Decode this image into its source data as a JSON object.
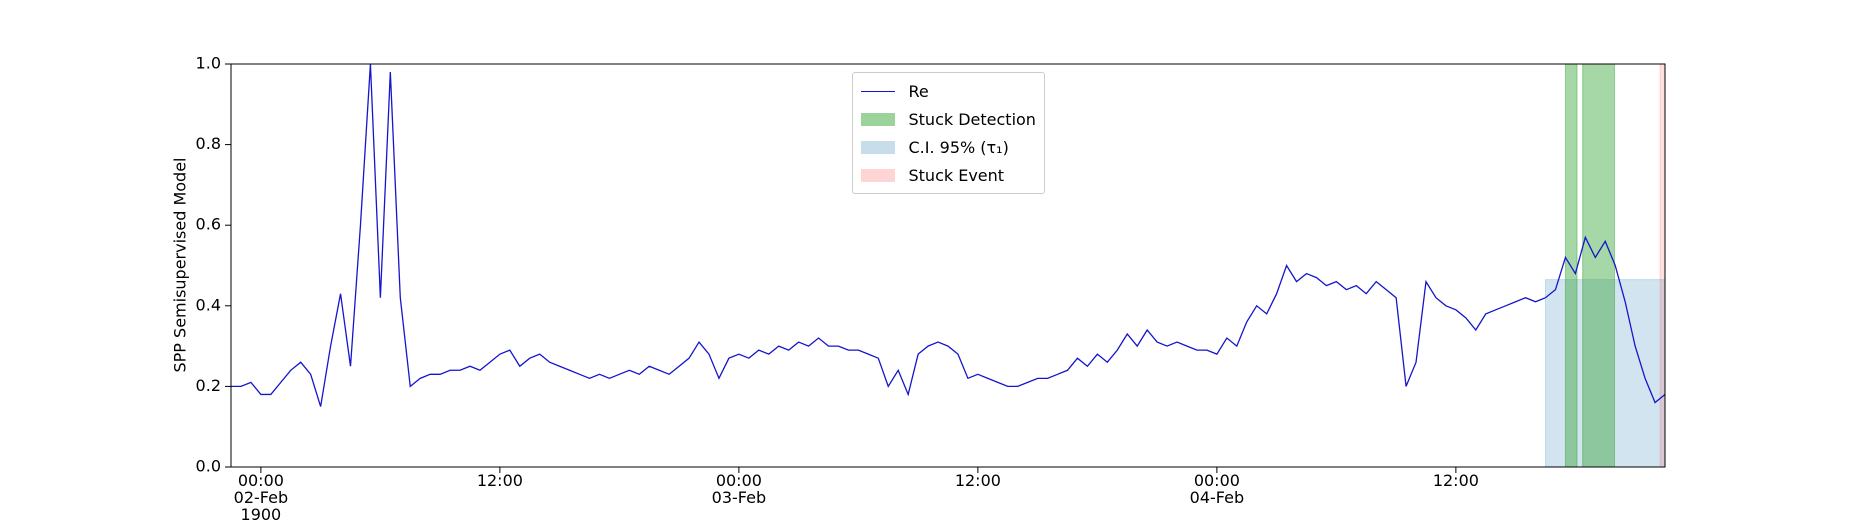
{
  "chart_data": {
    "type": "line",
    "ylabel": "SPP Semisupervised Model",
    "x": [
      "1900-02-01T22:30",
      "1900-02-01T23:00",
      "1900-02-01T23:30",
      "1900-02-02T00:00",
      "1900-02-02T00:30",
      "1900-02-02T01:00",
      "1900-02-02T01:30",
      "1900-02-02T02:00",
      "1900-02-02T02:30",
      "1900-02-02T03:00",
      "1900-02-02T03:30",
      "1900-02-02T04:00",
      "1900-02-02T04:30",
      "1900-02-02T05:00",
      "1900-02-02T05:30",
      "1900-02-02T06:00",
      "1900-02-02T06:30",
      "1900-02-02T07:00",
      "1900-02-02T07:30",
      "1900-02-02T08:00",
      "1900-02-02T08:30",
      "1900-02-02T09:00",
      "1900-02-02T09:30",
      "1900-02-02T10:00",
      "1900-02-02T10:30",
      "1900-02-02T11:00",
      "1900-02-02T11:30",
      "1900-02-02T12:00",
      "1900-02-02T12:30",
      "1900-02-02T13:00",
      "1900-02-02T13:30",
      "1900-02-02T14:00",
      "1900-02-02T14:30",
      "1900-02-02T15:00",
      "1900-02-02T15:30",
      "1900-02-02T16:00",
      "1900-02-02T16:30",
      "1900-02-02T17:00",
      "1900-02-02T17:30",
      "1900-02-02T18:00",
      "1900-02-02T18:30",
      "1900-02-02T19:00",
      "1900-02-02T19:30",
      "1900-02-02T20:00",
      "1900-02-02T20:30",
      "1900-02-02T21:00",
      "1900-02-02T21:30",
      "1900-02-02T22:00",
      "1900-02-02T22:30",
      "1900-02-02T23:00",
      "1900-02-02T23:30",
      "1900-02-03T00:00",
      "1900-02-03T00:30",
      "1900-02-03T01:00",
      "1900-02-03T01:30",
      "1900-02-03T02:00",
      "1900-02-03T02:30",
      "1900-02-03T03:00",
      "1900-02-03T03:30",
      "1900-02-03T04:00",
      "1900-02-03T04:30",
      "1900-02-03T05:00",
      "1900-02-03T05:30",
      "1900-02-03T06:00",
      "1900-02-03T06:30",
      "1900-02-03T07:00",
      "1900-02-03T07:30",
      "1900-02-03T08:00",
      "1900-02-03T08:30",
      "1900-02-03T09:00",
      "1900-02-03T09:30",
      "1900-02-03T10:00",
      "1900-02-03T10:30",
      "1900-02-03T11:00",
      "1900-02-03T11:30",
      "1900-02-03T12:00",
      "1900-02-03T12:30",
      "1900-02-03T13:00",
      "1900-02-03T13:30",
      "1900-02-03T14:00",
      "1900-02-03T14:30",
      "1900-02-03T15:00",
      "1900-02-03T15:30",
      "1900-02-03T16:00",
      "1900-02-03T16:30",
      "1900-02-03T17:00",
      "1900-02-03T17:30",
      "1900-02-03T18:00",
      "1900-02-03T18:30",
      "1900-02-03T19:00",
      "1900-02-03T19:30",
      "1900-02-03T20:00",
      "1900-02-03T20:30",
      "1900-02-03T21:00",
      "1900-02-03T21:30",
      "1900-02-03T22:00",
      "1900-02-03T22:30",
      "1900-02-03T23:00",
      "1900-02-03T23:30",
      "1900-02-04T00:00",
      "1900-02-04T00:30",
      "1900-02-04T01:00",
      "1900-02-04T01:30",
      "1900-02-04T02:00",
      "1900-02-04T02:30",
      "1900-02-04T03:00",
      "1900-02-04T03:30",
      "1900-02-04T04:00",
      "1900-02-04T04:30",
      "1900-02-04T05:00",
      "1900-02-04T05:30",
      "1900-02-04T06:00",
      "1900-02-04T06:30",
      "1900-02-04T07:00",
      "1900-02-04T07:30",
      "1900-02-04T08:00",
      "1900-02-04T08:30",
      "1900-02-04T09:00",
      "1900-02-04T09:30",
      "1900-02-04T10:00",
      "1900-02-04T10:30",
      "1900-02-04T11:00",
      "1900-02-04T11:30",
      "1900-02-04T12:00",
      "1900-02-04T12:30",
      "1900-02-04T13:00",
      "1900-02-04T13:30",
      "1900-02-04T14:00",
      "1900-02-04T14:30",
      "1900-02-04T15:00",
      "1900-02-04T15:30",
      "1900-02-04T16:00",
      "1900-02-04T16:30",
      "1900-02-04T17:00",
      "1900-02-04T17:30",
      "1900-02-04T18:00",
      "1900-02-04T18:30",
      "1900-02-04T19:00",
      "1900-02-04T19:30",
      "1900-02-04T20:00",
      "1900-02-04T20:30",
      "1900-02-04T21:00",
      "1900-02-04T21:30",
      "1900-02-04T22:00",
      "1900-02-04T22:30"
    ],
    "series": [
      {
        "name": "Re",
        "color": "#1515cc",
        "values": [
          0.2,
          0.2,
          0.21,
          0.18,
          0.18,
          0.21,
          0.24,
          0.26,
          0.23,
          0.15,
          0.3,
          0.43,
          0.25,
          0.6,
          1.0,
          0.42,
          0.98,
          0.42,
          0.2,
          0.22,
          0.23,
          0.23,
          0.24,
          0.24,
          0.25,
          0.24,
          0.26,
          0.28,
          0.29,
          0.25,
          0.27,
          0.28,
          0.26,
          0.25,
          0.24,
          0.23,
          0.22,
          0.23,
          0.22,
          0.23,
          0.24,
          0.23,
          0.25,
          0.24,
          0.23,
          0.25,
          0.27,
          0.31,
          0.28,
          0.22,
          0.27,
          0.28,
          0.27,
          0.29,
          0.28,
          0.3,
          0.29,
          0.31,
          0.3,
          0.32,
          0.3,
          0.3,
          0.29,
          0.29,
          0.28,
          0.27,
          0.2,
          0.24,
          0.18,
          0.28,
          0.3,
          0.31,
          0.3,
          0.28,
          0.22,
          0.23,
          0.22,
          0.21,
          0.2,
          0.2,
          0.21,
          0.22,
          0.22,
          0.23,
          0.24,
          0.27,
          0.25,
          0.28,
          0.26,
          0.29,
          0.33,
          0.3,
          0.34,
          0.31,
          0.3,
          0.31,
          0.3,
          0.29,
          0.29,
          0.28,
          0.32,
          0.3,
          0.36,
          0.4,
          0.38,
          0.43,
          0.5,
          0.46,
          0.48,
          0.47,
          0.45,
          0.46,
          0.44,
          0.45,
          0.43,
          0.46,
          0.44,
          0.42,
          0.2,
          0.26,
          0.46,
          0.42,
          0.4,
          0.39,
          0.37,
          0.34,
          0.38,
          0.39,
          0.4,
          0.41,
          0.42,
          0.41,
          0.42,
          0.44,
          0.52,
          0.48,
          0.57,
          0.52,
          0.56,
          0.5,
          0.41,
          0.3,
          0.22,
          0.16,
          0.18
        ]
      }
    ],
    "spans": [
      {
        "name": "Stuck Detection",
        "color": "#2ca02c",
        "opacity": 0.42,
        "ranges": [
          [
            "1900-02-04T17:30",
            "1900-02-04T18:05"
          ],
          [
            "1900-02-04T18:22",
            "1900-02-04T19:58"
          ]
        ]
      },
      {
        "name": "C.I. 95% (τ₁)",
        "color": "#1f77b4",
        "opacity": 0.2,
        "ymax": 0.465,
        "ranges": [
          [
            "1900-02-04T16:30",
            "1900-02-04T22:30"
          ]
        ]
      },
      {
        "name": "Stuck Event",
        "color": "#ff0000",
        "opacity": 0.12,
        "ranges": [
          [
            "1900-02-04T22:15",
            "1900-02-04T22:30"
          ]
        ]
      }
    ],
    "xlim": [
      "1900-02-01T22:30",
      "1900-02-04T22:30"
    ],
    "xticks": [
      {
        "value": "1900-02-02T00:00",
        "label": "00:00\n02-Feb\n1900"
      },
      {
        "value": "1900-02-02T12:00",
        "label": "12:00"
      },
      {
        "value": "1900-02-03T00:00",
        "label": "00:00\n03-Feb"
      },
      {
        "value": "1900-02-03T12:00",
        "label": "12:00"
      },
      {
        "value": "1900-02-04T00:00",
        "label": "00:00\n04-Feb"
      },
      {
        "value": "1900-02-04T12:00",
        "label": "12:00"
      }
    ],
    "ylim": [
      0,
      1
    ],
    "yticks": [
      {
        "value": 0,
        "label": "0.0"
      },
      {
        "value": 0.2,
        "label": "0.2"
      },
      {
        "value": 0.4,
        "label": "0.4"
      },
      {
        "value": 0.6,
        "label": "0.6"
      },
      {
        "value": 0.8,
        "label": "0.8"
      },
      {
        "value": 1,
        "label": "1.0"
      }
    ],
    "legend": "upper center"
  }
}
